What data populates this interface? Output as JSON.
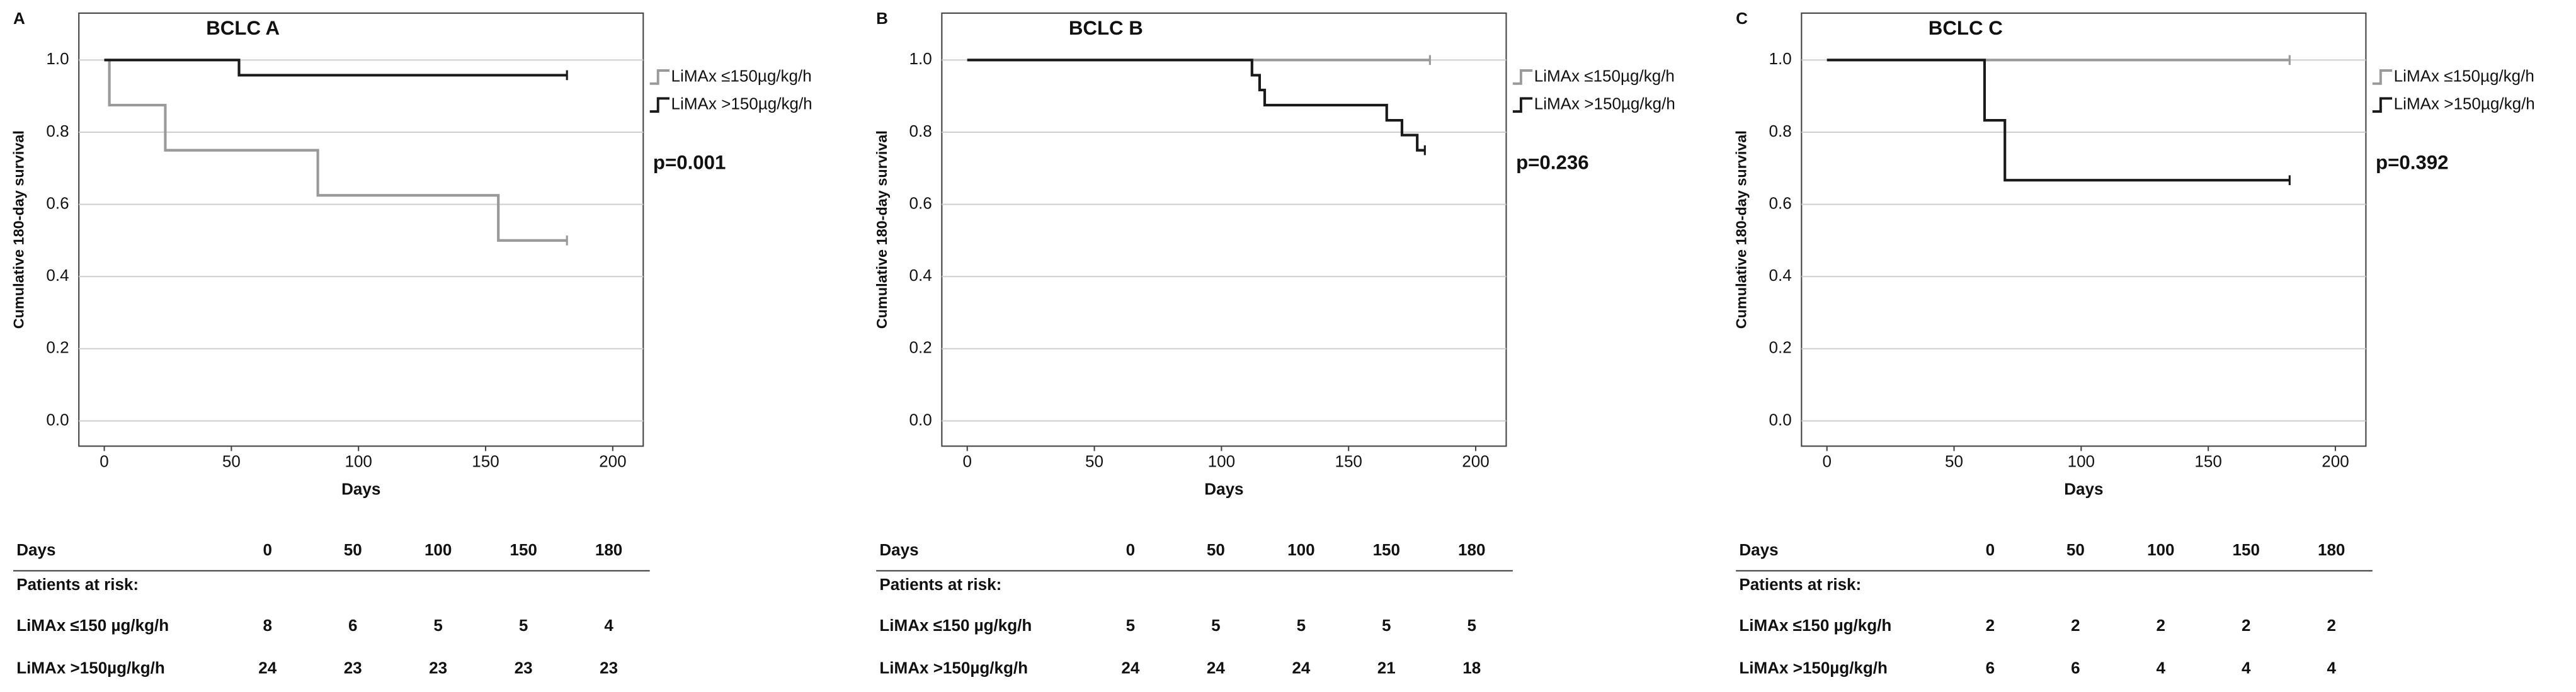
{
  "chart_data": [
    {
      "type": "step",
      "panel_label": "A",
      "title": "BCLC A",
      "x_label": "Days",
      "y_label": "Cumulative 180-day survival",
      "xlim": [
        -10,
        212
      ],
      "xticks": [
        0,
        50,
        100,
        150,
        200
      ],
      "ylim": [
        -0.07,
        1.13
      ],
      "yticks": [
        {
          "value": 0,
          "label": "0.0"
        },
        0.2,
        0.4,
        0.6,
        0.8,
        {
          "value": 1,
          "label": "1.0"
        }
      ],
      "grid": true,
      "annotation": "p=0.001",
      "series": [
        {
          "name": "LiMAx ≤150µg/kg/h",
          "color": "#9a9a9a",
          "x": [
            0,
            2,
            24,
            84,
            155,
            182
          ],
          "values": [
            1,
            0.875,
            0.75,
            0.625,
            0.5,
            0.5
          ]
        },
        {
          "name": "LiMAx >150µg/kg/h",
          "color": "#1a1a1a",
          "x": [
            0,
            53,
            182
          ],
          "values": [
            1,
            0.958,
            0.958
          ]
        }
      ],
      "risk_table": {
        "header": "Days",
        "columns": [
          0,
          50,
          100,
          150,
          180
        ],
        "subheader": "Patients at risk:",
        "rows": [
          {
            "label": "LiMAx ≤150 µg/kg/h",
            "values": [
              8,
              6,
              5,
              5,
              4
            ]
          },
          {
            "label": "LiMAx >150µg/kg/h",
            "values": [
              24,
              23,
              23,
              23,
              23
            ]
          }
        ]
      }
    },
    {
      "type": "step",
      "panel_label": "B",
      "title": "BCLC B",
      "x_label": "Days",
      "y_label": "Cumulative 180-day survival",
      "xlim": [
        -10,
        212
      ],
      "xticks": [
        0,
        50,
        100,
        150,
        200
      ],
      "ylim": [
        -0.07,
        1.13
      ],
      "yticks": [
        {
          "value": 0,
          "label": "0.0"
        },
        0.2,
        0.4,
        0.6,
        0.8,
        {
          "value": 1,
          "label": "1.0"
        }
      ],
      "grid": true,
      "annotation": "p=0.236",
      "series": [
        {
          "name": "LiMAx ≤150µg/kg/h",
          "color": "#9a9a9a",
          "x": [
            0,
            182
          ],
          "values": [
            1,
            1
          ]
        },
        {
          "name": "LiMAx >150µg/kg/h",
          "color": "#1a1a1a",
          "x": [
            0,
            112,
            115,
            117,
            165,
            171,
            177,
            180
          ],
          "values": [
            1,
            0.958,
            0.917,
            0.875,
            0.833,
            0.792,
            0.75,
            0.75
          ]
        }
      ],
      "risk_table": {
        "header": "Days",
        "columns": [
          0,
          50,
          100,
          150,
          180
        ],
        "subheader": "Patients at risk:",
        "rows": [
          {
            "label": "LiMAx ≤150 µg/kg/h",
            "values": [
              5,
              5,
              5,
              5,
              5
            ]
          },
          {
            "label": "LiMAx >150µg/kg/h",
            "values": [
              24,
              24,
              24,
              21,
              18
            ]
          }
        ]
      }
    },
    {
      "type": "step",
      "panel_label": "C",
      "title": "BCLC C",
      "x_label": "Days",
      "y_label": "Cumulative 180-day survival",
      "xlim": [
        -10,
        212
      ],
      "xticks": [
        0,
        50,
        100,
        150,
        200
      ],
      "ylim": [
        -0.07,
        1.13
      ],
      "yticks": [
        {
          "value": 0,
          "label": "0.0"
        },
        0.2,
        0.4,
        0.6,
        0.8,
        {
          "value": 1,
          "label": "1.0"
        }
      ],
      "grid": true,
      "annotation": "p=0.392",
      "series": [
        {
          "name": "LiMAx ≤150µg/kg/h",
          "color": "#9a9a9a",
          "x": [
            0,
            182
          ],
          "values": [
            1,
            1
          ]
        },
        {
          "name": "LiMAx >150µg/kg/h",
          "color": "#1a1a1a",
          "x": [
            0,
            62,
            70,
            182
          ],
          "values": [
            1,
            0.833,
            0.667,
            0.667
          ]
        }
      ],
      "risk_table": {
        "header": "Days",
        "columns": [
          0,
          50,
          100,
          150,
          180
        ],
        "subheader": "Patients at risk:",
        "rows": [
          {
            "label": "LiMAx ≤150 µg/kg/h",
            "values": [
              2,
              2,
              2,
              2,
              2
            ]
          },
          {
            "label": "LiMAx >150µg/kg/h",
            "values": [
              6,
              6,
              4,
              4,
              4
            ]
          }
        ]
      }
    }
  ]
}
